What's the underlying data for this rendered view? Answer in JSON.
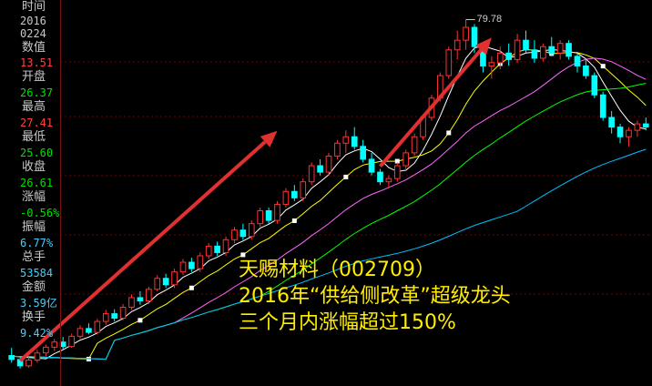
{
  "sidebar": {
    "time_label": "时间",
    "year": "2016",
    "date": "0224",
    "value_label": "数值",
    "value": "13.51",
    "open_label": "开盘",
    "open": "26.37",
    "high_label": "最高",
    "high": "27.41",
    "low_label": "最低",
    "low": "25.60",
    "close_label": "收盘",
    "close": "26.61",
    "change_label": "涨幅",
    "change": "-0.56%",
    "amplitude_label": "振幅",
    "amplitude": "6.77%",
    "volume_label": "总手",
    "volume": "53584",
    "amount_label": "金额",
    "amount": "3.59亿",
    "turnover_label": "换手",
    "turnover": "9.42%"
  },
  "overlay": {
    "line1": "天赐材料（002709）",
    "line2": "2016年“供给侧改革”超级龙头",
    "line3": "三个月内涨幅超过150%"
  },
  "colors": {
    "up": "#ff3232",
    "down": "#00ffff",
    "value": "#ff4040",
    "positive": "#00e000",
    "ma5": "#ffffff",
    "ma10": "#ffff00",
    "ma20": "#ff66ff",
    "ma30": "#00ff00",
    "ma60": "#00c0ff",
    "arrow": "#e03030",
    "grid": "#700000"
  },
  "chart_data": {
    "type": "candlestick",
    "peak_label": "79.78",
    "y_range": [
      24,
      82
    ],
    "ohlc": [
      [
        27.6,
        28.8,
        26.5,
        27.0
      ],
      [
        27.0,
        27.5,
        25.6,
        26.0
      ],
      [
        26.0,
        27.4,
        25.7,
        26.9
      ],
      [
        26.9,
        28.5,
        26.5,
        28.0
      ],
      [
        28.0,
        29.3,
        27.5,
        28.9
      ],
      [
        28.9,
        30.2,
        28.3,
        29.7
      ],
      [
        29.7,
        30.5,
        28.5,
        29.0
      ],
      [
        29.0,
        31.0,
        28.8,
        30.6
      ],
      [
        30.6,
        32.3,
        30.2,
        31.8
      ],
      [
        31.8,
        32.6,
        30.9,
        31.2
      ],
      [
        31.2,
        33.3,
        30.9,
        32.9
      ],
      [
        32.9,
        34.7,
        32.4,
        34.1
      ],
      [
        34.1,
        34.8,
        32.9,
        33.4
      ],
      [
        33.4,
        35.6,
        33.1,
        35.1
      ],
      [
        35.1,
        37.1,
        34.7,
        36.6
      ],
      [
        36.6,
        37.6,
        35.5,
        36.1
      ],
      [
        36.1,
        38.3,
        35.6,
        37.9
      ],
      [
        37.9,
        40.1,
        37.6,
        39.6
      ],
      [
        39.6,
        40.3,
        38.1,
        38.6
      ],
      [
        38.6,
        41.1,
        38.1,
        40.6
      ],
      [
        40.6,
        42.6,
        40.1,
        42.1
      ],
      [
        42.1,
        42.8,
        40.6,
        41.1
      ],
      [
        41.1,
        43.6,
        40.6,
        43.1
      ],
      [
        43.1,
        45.1,
        42.6,
        44.6
      ],
      [
        44.6,
        45.3,
        43.1,
        43.6
      ],
      [
        43.6,
        46.1,
        43.1,
        45.6
      ],
      [
        45.6,
        47.6,
        45.1,
        47.1
      ],
      [
        47.1,
        48.1,
        45.6,
        46.1
      ],
      [
        46.1,
        48.6,
        45.6,
        48.1
      ],
      [
        48.1,
        50.6,
        47.6,
        50.1
      ],
      [
        50.1,
        50.6,
        48.1,
        48.6
      ],
      [
        48.6,
        51.6,
        48.1,
        51.1
      ],
      [
        51.1,
        53.6,
        50.6,
        53.1
      ],
      [
        53.1,
        54.1,
        51.6,
        52.1
      ],
      [
        52.1,
        55.1,
        51.6,
        54.6
      ],
      [
        54.6,
        57.6,
        54.1,
        57.1
      ],
      [
        57.1,
        58.1,
        55.6,
        56.1
      ],
      [
        56.1,
        59.1,
        55.6,
        58.6
      ],
      [
        58.6,
        61.1,
        58.1,
        60.6
      ],
      [
        60.6,
        62.6,
        59.1,
        61.6
      ],
      [
        61.6,
        63.1,
        59.6,
        60.1
      ],
      [
        60.1,
        61.1,
        57.6,
        58.1
      ],
      [
        58.1,
        59.1,
        55.6,
        56.1
      ],
      [
        56.1,
        56.6,
        54.1,
        54.6
      ],
      [
        54.6,
        55.6,
        53.6,
        55.1
      ],
      [
        55.1,
        57.6,
        54.6,
        57.1
      ],
      [
        57.1,
        59.6,
        56.6,
        59.1
      ],
      [
        59.1,
        62.1,
        58.6,
        61.6
      ],
      [
        61.6,
        65.1,
        61.1,
        64.6
      ],
      [
        64.6,
        68.1,
        64.1,
        67.6
      ],
      [
        67.6,
        71.6,
        67.1,
        71.1
      ],
      [
        71.1,
        75.6,
        70.6,
        75.1
      ],
      [
        75.1,
        78.1,
        73.6,
        76.6
      ],
      [
        76.6,
        79.8,
        75.1,
        78.6
      ],
      [
        78.6,
        79.1,
        74.6,
        75.6
      ],
      [
        75.6,
        76.1,
        71.6,
        72.6
      ],
      [
        72.6,
        74.1,
        70.6,
        73.1
      ],
      [
        73.1,
        75.6,
        72.1,
        74.6
      ],
      [
        74.6,
        76.1,
        72.6,
        73.6
      ],
      [
        73.6,
        77.6,
        73.1,
        76.6
      ],
      [
        76.6,
        78.1,
        74.6,
        75.1
      ],
      [
        75.1,
        76.6,
        73.1,
        73.8
      ],
      [
        73.8,
        76.1,
        73.3,
        75.6
      ],
      [
        75.6,
        77.1,
        74.1,
        74.6
      ],
      [
        74.6,
        76.6,
        73.6,
        76.1
      ],
      [
        76.1,
        76.6,
        73.6,
        74.1
      ],
      [
        74.1,
        74.6,
        71.6,
        72.6
      ],
      [
        72.6,
        73.6,
        70.6,
        71.1
      ],
      [
        71.1,
        71.6,
        67.6,
        68.1
      ],
      [
        68.1,
        68.6,
        64.1,
        64.6
      ],
      [
        64.6,
        65.6,
        62.1,
        63.1
      ],
      [
        63.1,
        63.6,
        60.6,
        61.6
      ],
      [
        61.6,
        63.1,
        60.1,
        62.6
      ],
      [
        62.6,
        64.1,
        61.6,
        63.6
      ],
      [
        63.6,
        64.6,
        62.6,
        63.1
      ]
    ],
    "arrows": [
      {
        "from": [
          1,
          26.8
        ],
        "to": [
          31,
          62.5
        ]
      },
      {
        "from": [
          43,
          57.0
        ],
        "to": [
          56,
          77.0
        ]
      }
    ]
  }
}
